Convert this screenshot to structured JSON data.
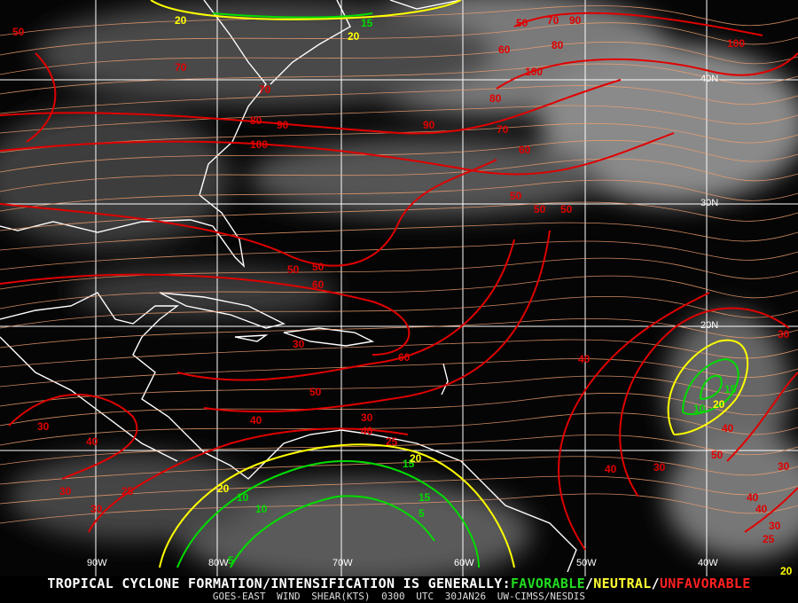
{
  "map": {
    "product": "GOES-EAST WIND SHEAR(KTS)",
    "time": "0300 UTC",
    "date": "30JAN26",
    "source": "UW-CIMSS/NESDIS",
    "headline": "TROPICAL CYCLONE FORMATION/INTENSIFICATION IS GENERALLY:",
    "legend": [
      {
        "label": "FAVORABLE",
        "color": "#22dd22"
      },
      {
        "label": "/",
        "color": "#ffffff"
      },
      {
        "label": "NEUTRAL",
        "color": "#ffff33"
      },
      {
        "label": "/",
        "color": "#ffffff"
      },
      {
        "label": "UNFAVORABLE",
        "color": "#ff2020"
      }
    ],
    "longitude_labels": [
      "90W",
      "80W",
      "70W",
      "60W",
      "50W",
      "40W"
    ],
    "latitude_labels": [
      "40N",
      "30N",
      "20N"
    ],
    "colors": {
      "unfavorable": "#e00000",
      "neutral": "#ffff00",
      "favorable": "#00dd00",
      "streamline": "#f0a070",
      "coast": "#ffffff",
      "grid": "#ffffff"
    },
    "contour_labels": [
      {
        "v": "50",
        "c": "unfavorable"
      },
      {
        "v": "20",
        "c": "neutral"
      },
      {
        "v": "15",
        "c": "favorable"
      },
      {
        "v": "20",
        "c": "neutral"
      },
      {
        "v": "50",
        "c": "unfavorable"
      },
      {
        "v": "70",
        "c": "unfavorable"
      },
      {
        "v": "90",
        "c": "unfavorable"
      },
      {
        "v": "100",
        "c": "unfavorable"
      },
      {
        "v": "60",
        "c": "unfavorable"
      },
      {
        "v": "80",
        "c": "unfavorable"
      },
      {
        "v": "100",
        "c": "unfavorable"
      },
      {
        "v": "70",
        "c": "unfavorable"
      },
      {
        "v": "70",
        "c": "unfavorable"
      },
      {
        "v": "80",
        "c": "unfavorable"
      },
      {
        "v": "90",
        "c": "unfavorable"
      },
      {
        "v": "90",
        "c": "unfavorable"
      },
      {
        "v": "100",
        "c": "unfavorable"
      },
      {
        "v": "80",
        "c": "unfavorable"
      },
      {
        "v": "70",
        "c": "unfavorable"
      },
      {
        "v": "60",
        "c": "unfavorable"
      },
      {
        "v": "50",
        "c": "unfavorable"
      },
      {
        "v": "50",
        "c": "unfavorable"
      },
      {
        "v": "50",
        "c": "unfavorable"
      },
      {
        "v": "60",
        "c": "unfavorable"
      },
      {
        "v": "30",
        "c": "unfavorable"
      },
      {
        "v": "60",
        "c": "unfavorable"
      },
      {
        "v": "50",
        "c": "unfavorable"
      },
      {
        "v": "40",
        "c": "unfavorable"
      },
      {
        "v": "40",
        "c": "unfavorable"
      },
      {
        "v": "30",
        "c": "unfavorable"
      },
      {
        "v": "40",
        "c": "unfavorable"
      },
      {
        "v": "30",
        "c": "unfavorable"
      },
      {
        "v": "25",
        "c": "unfavorable"
      },
      {
        "v": "30",
        "c": "unfavorable"
      },
      {
        "v": "30",
        "c": "unfavorable"
      },
      {
        "v": "25",
        "c": "unfavorable"
      },
      {
        "v": "20",
        "c": "neutral"
      },
      {
        "v": "15",
        "c": "favorable"
      },
      {
        "v": "10",
        "c": "favorable"
      },
      {
        "v": "20",
        "c": "neutral"
      },
      {
        "v": "15",
        "c": "favorable"
      },
      {
        "v": "10",
        "c": "favorable"
      },
      {
        "v": "5",
        "c": "favorable"
      },
      {
        "v": "5",
        "c": "favorable"
      },
      {
        "v": "40",
        "c": "unfavorable"
      },
      {
        "v": "40",
        "c": "unfavorable"
      },
      {
        "v": "30",
        "c": "unfavorable"
      },
      {
        "v": "30",
        "c": "unfavorable"
      },
      {
        "v": "15",
        "c": "favorable"
      },
      {
        "v": "10",
        "c": "favorable"
      },
      {
        "v": "20",
        "c": "neutral"
      },
      {
        "v": "40",
        "c": "unfavorable"
      },
      {
        "v": "50",
        "c": "unfavorable"
      },
      {
        "v": "40",
        "c": "unfavorable"
      },
      {
        "v": "30",
        "c": "unfavorable"
      },
      {
        "v": "25",
        "c": "unfavorable"
      },
      {
        "v": "20",
        "c": "neutral"
      },
      {
        "v": "30",
        "c": "unfavorable"
      },
      {
        "v": "40",
        "c": "unfavorable"
      },
      {
        "v": "50",
        "c": "unfavorable"
      },
      {
        "v": "50",
        "c": "unfavorable"
      }
    ]
  }
}
